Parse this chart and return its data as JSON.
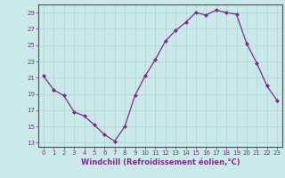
{
  "x": [
    0,
    1,
    2,
    3,
    4,
    5,
    6,
    7,
    8,
    9,
    10,
    11,
    12,
    13,
    14,
    15,
    16,
    17,
    18,
    19,
    20,
    21,
    22,
    23
  ],
  "y": [
    21.2,
    19.5,
    18.8,
    16.8,
    16.3,
    15.2,
    14.0,
    13.2,
    15.0,
    18.8,
    21.2,
    23.2,
    25.5,
    26.8,
    27.8,
    29.0,
    28.7,
    29.3,
    29.0,
    28.8,
    25.2,
    22.8,
    20.0,
    18.2
  ],
  "line_color": "#7B2D8B",
  "marker": "D",
  "marker_size": 2.0,
  "background_color": "#cce9e9",
  "grid_color": "#b0d8d8",
  "xlabel": "Windchill (Refroidissement éolien,°C)",
  "xlabel_color": "#7B2D8B",
  "tick_color": "#7B2D8B",
  "ylim": [
    12.5,
    30.0
  ],
  "xlim": [
    -0.5,
    23.5
  ],
  "yticks": [
    13,
    15,
    17,
    19,
    21,
    23,
    25,
    27,
    29
  ],
  "xticks": [
    0,
    1,
    2,
    3,
    4,
    5,
    6,
    7,
    8,
    9,
    10,
    11,
    12,
    13,
    14,
    15,
    16,
    17,
    18,
    19,
    20,
    21,
    22,
    23
  ],
  "spine_color": "#7B2D8B",
  "tick_fontsize": 5.0,
  "xlabel_fontsize": 6.0
}
